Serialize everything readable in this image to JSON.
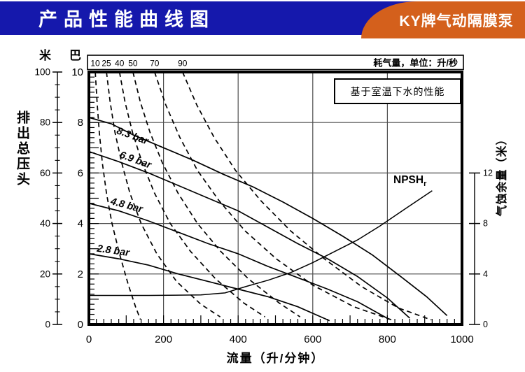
{
  "header": {
    "title": "产品性能曲线图",
    "badge": "KY牌气动隔膜泵"
  },
  "colors": {
    "header_blue": "#1518ac",
    "badge_orange": "#d4601c",
    "grid": "#4d4d4d",
    "ink": "#000000"
  },
  "air_strip": {
    "caption": "耗气量，单位：升/秒"
  },
  "axes": {
    "left_outer": {
      "unit": "米",
      "title": "排出总压头",
      "ticks": [
        0,
        20,
        40,
        60,
        80,
        100
      ]
    },
    "left_inner": {
      "unit": "巴",
      "ticks": [
        0,
        2,
        4,
        6,
        8,
        10
      ]
    },
    "right": {
      "title": "气蚀余量（米）",
      "ticks": [
        0,
        4,
        8,
        12
      ]
    },
    "bottom": {
      "title": "流量（升/分钟）",
      "ticks": [
        0,
        200,
        400,
        600,
        800,
        1000
      ]
    }
  },
  "note_box": {
    "text": "基于室温下水的性能"
  },
  "npsh_label": {
    "main": "NPSH",
    "sub": "r"
  },
  "chart_data": {
    "type": "line",
    "title": "产品性能曲线图",
    "xlabel": "流量（升/分钟）",
    "ylabel_left": "排出总压头（米 / 巴）",
    "ylabel_right": "气蚀余量（米）",
    "xlim": [
      0,
      1000
    ],
    "ylim_bar": [
      0,
      10
    ],
    "ylim_m": [
      0,
      100
    ],
    "ylim_right_npsh": [
      0,
      12
    ],
    "right_scale_spans_bar_units": [
      0,
      6
    ],
    "grid": {
      "x_every": 200,
      "y_every_bar": 2
    },
    "head_curves": [
      {
        "label": "8.3 bar",
        "style": "solid",
        "label_at": [
          114,
          7.35
        ],
        "label_angle": 20,
        "points": [
          [
            0,
            8.2
          ],
          [
            60,
            7.95
          ],
          [
            120,
            7.5
          ],
          [
            200,
            7.0
          ],
          [
            280,
            6.5
          ],
          [
            360,
            5.95
          ],
          [
            440,
            5.45
          ],
          [
            520,
            4.85
          ],
          [
            600,
            4.2
          ],
          [
            680,
            3.5
          ],
          [
            760,
            2.75
          ],
          [
            840,
            1.85
          ],
          [
            905,
            1.1
          ],
          [
            960,
            0.35
          ]
        ]
      },
      {
        "label": "6.9 bar",
        "style": "solid",
        "label_at": [
          122,
          6.4
        ],
        "label_angle": 20,
        "points": [
          [
            0,
            6.85
          ],
          [
            80,
            6.45
          ],
          [
            160,
            6.0
          ],
          [
            240,
            5.5
          ],
          [
            320,
            5.0
          ],
          [
            400,
            4.5
          ],
          [
            480,
            3.85
          ],
          [
            560,
            3.2
          ],
          [
            640,
            2.6
          ],
          [
            720,
            1.9
          ],
          [
            800,
            1.05
          ],
          [
            860,
            0.25
          ]
        ]
      },
      {
        "label": "4.8 bar",
        "style": "solid",
        "label_at": [
          99,
          4.6
        ],
        "label_angle": 15,
        "points": [
          [
            0,
            4.8
          ],
          [
            80,
            4.5
          ],
          [
            160,
            4.1
          ],
          [
            240,
            3.65
          ],
          [
            320,
            3.2
          ],
          [
            400,
            2.8
          ],
          [
            480,
            2.3
          ],
          [
            560,
            1.85
          ],
          [
            640,
            1.4
          ],
          [
            720,
            0.9
          ],
          [
            805,
            0.2
          ]
        ]
      },
      {
        "label": "2.8 bar",
        "style": "solid",
        "label_at": [
          64,
          2.8
        ],
        "label_angle": 8,
        "points": [
          [
            0,
            2.8
          ],
          [
            80,
            2.6
          ],
          [
            160,
            2.35
          ],
          [
            240,
            2.0
          ],
          [
            320,
            1.7
          ],
          [
            400,
            1.4
          ],
          [
            480,
            1.1
          ],
          [
            560,
            0.7
          ],
          [
            645,
            0.15
          ]
        ]
      }
    ],
    "npsh_curve": {
      "label": "NPSHr",
      "style": "solid",
      "points": [
        [
          0,
          1.15
        ],
        [
          160,
          1.15
        ],
        [
          300,
          1.17
        ],
        [
          365,
          1.25
        ],
        [
          420,
          1.5
        ],
        [
          480,
          1.75
        ],
        [
          540,
          2.05
        ],
        [
          600,
          2.45
        ],
        [
          660,
          2.9
        ],
        [
          720,
          3.35
        ],
        [
          780,
          3.9
        ],
        [
          850,
          4.6
        ],
        [
          920,
          5.3
        ]
      ]
    },
    "air_consumption_curves": [
      {
        "label": "10",
        "style": "dashed",
        "points": [
          [
            17,
            10
          ],
          [
            22,
            8.8
          ],
          [
            28,
            7.6
          ],
          [
            36,
            6.4
          ],
          [
            47,
            5.2
          ],
          [
            62,
            4.0
          ],
          [
            82,
            2.8
          ],
          [
            105,
            1.6
          ],
          [
            125,
            0.7
          ],
          [
            138,
            0.2
          ]
        ]
      },
      {
        "label": "25",
        "style": "dashed",
        "points": [
          [
            47,
            10
          ],
          [
            57,
            8.8
          ],
          [
            70,
            7.6
          ],
          [
            88,
            6.4
          ],
          [
            110,
            5.2
          ],
          [
            140,
            4.0
          ],
          [
            182,
            2.8
          ],
          [
            235,
            1.7
          ],
          [
            300,
            0.8
          ],
          [
            352,
            0.3
          ]
        ]
      },
      {
        "label": "40",
        "style": "dashed",
        "points": [
          [
            82,
            10
          ],
          [
            97,
            8.8
          ],
          [
            117,
            7.6
          ],
          [
            143,
            6.4
          ],
          [
            176,
            5.2
          ],
          [
            218,
            4.0
          ],
          [
            272,
            2.9
          ],
          [
            340,
            1.8
          ],
          [
            415,
            0.85
          ],
          [
            472,
            0.3
          ]
        ]
      },
      {
        "label": "50",
        "style": "dashed",
        "points": [
          [
            118,
            10
          ],
          [
            138,
            8.8
          ],
          [
            164,
            7.6
          ],
          [
            197,
            6.4
          ],
          [
            239,
            5.2
          ],
          [
            291,
            4.0
          ],
          [
            353,
            2.9
          ],
          [
            428,
            1.8
          ],
          [
            510,
            0.85
          ],
          [
            566,
            0.3
          ]
        ]
      },
      {
        "label": "70",
        "style": "dashed",
        "points": [
          [
            176,
            10
          ],
          [
            206,
            8.7
          ],
          [
            244,
            7.4
          ],
          [
            291,
            6.1
          ],
          [
            349,
            4.9
          ],
          [
            419,
            3.7
          ],
          [
            502,
            2.6
          ],
          [
            601,
            1.55
          ],
          [
            710,
            0.7
          ],
          [
            812,
            0.18
          ]
        ]
      },
      {
        "label": "90",
        "style": "dashed",
        "points": [
          [
            251,
            10
          ],
          [
            289,
            8.7
          ],
          [
            336,
            7.4
          ],
          [
            393,
            6.1
          ],
          [
            461,
            4.9
          ],
          [
            541,
            3.7
          ],
          [
            631,
            2.6
          ],
          [
            731,
            1.5
          ],
          [
            830,
            0.65
          ],
          [
            918,
            0.18
          ]
        ]
      }
    ]
  }
}
